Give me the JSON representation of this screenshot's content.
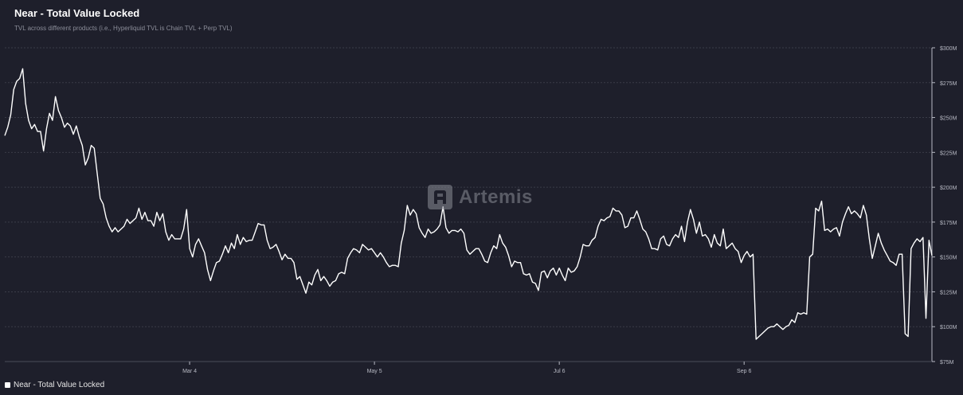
{
  "header": {
    "title": "Near - Total Value Locked",
    "subtitle": "TVL across different products (i.e., Hyperliquid TVL is Chain TVL + Perp TVL)"
  },
  "watermark": {
    "text": "Artemis",
    "icon": "artemis-logo-icon"
  },
  "legend": {
    "label": "Near - Total Value Locked",
    "color": "#ffffff"
  },
  "colors": {
    "background": "#1e1f2b",
    "line": "#ffffff",
    "grid": "#3a3c48",
    "tick_text": "#b8bac4"
  },
  "chart_data": {
    "type": "line",
    "title": "Near - Total Value Locked",
    "subtitle": "TVL across different products (i.e., Hyperliquid TVL is Chain TVL + Perp TVL)",
    "xlabel": "",
    "ylabel": "",
    "ylim": [
      75,
      300
    ],
    "y_unit": "M USD",
    "y_ticks": [
      75,
      100,
      125,
      150,
      175,
      200,
      225,
      250,
      275,
      300
    ],
    "y_tick_labels": [
      "$75M",
      "$100M",
      "$125M",
      "$150M",
      "$175M",
      "$200M",
      "$225M",
      "$250M",
      "$275M",
      "$300M"
    ],
    "x_ticks": [
      {
        "label": "Mar 4",
        "day": 62
      },
      {
        "label": "May 5",
        "day": 124
      },
      {
        "label": "Jul 6",
        "day": 186
      },
      {
        "label": "Sep 6",
        "day": 248
      }
    ],
    "x_range_days": [
      0,
      311
    ],
    "grid": true,
    "legend_position": "bottom-left",
    "series": [
      {
        "name": "Near - Total Value Locked",
        "color": "#ffffff",
        "points": [
          [
            0,
            237
          ],
          [
            1,
            243
          ],
          [
            2,
            252
          ],
          [
            3,
            270
          ],
          [
            4,
            276
          ],
          [
            5,
            278
          ],
          [
            6,
            285
          ],
          [
            7,
            260
          ],
          [
            8,
            248
          ],
          [
            9,
            242
          ],
          [
            10,
            245
          ],
          [
            11,
            240
          ],
          [
            12,
            240
          ],
          [
            13,
            226
          ],
          [
            14,
            242
          ],
          [
            15,
            253
          ],
          [
            16,
            248
          ],
          [
            17,
            265
          ],
          [
            18,
            255
          ],
          [
            19,
            250
          ],
          [
            20,
            243
          ],
          [
            21,
            246
          ],
          [
            22,
            244
          ],
          [
            23,
            238
          ],
          [
            24,
            244
          ],
          [
            25,
            236
          ],
          [
            26,
            230
          ],
          [
            27,
            216
          ],
          [
            28,
            221
          ],
          [
            29,
            230
          ],
          [
            30,
            228
          ],
          [
            31,
            210
          ],
          [
            32,
            192
          ],
          [
            33,
            188
          ],
          [
            34,
            178
          ],
          [
            35,
            172
          ],
          [
            36,
            168
          ],
          [
            37,
            171
          ],
          [
            38,
            168
          ],
          [
            39,
            170
          ],
          [
            40,
            172
          ],
          [
            41,
            177
          ],
          [
            42,
            174
          ],
          [
            43,
            176
          ],
          [
            44,
            178
          ],
          [
            45,
            185
          ],
          [
            46,
            177
          ],
          [
            47,
            182
          ],
          [
            48,
            176
          ],
          [
            49,
            176
          ],
          [
            50,
            172
          ],
          [
            51,
            182
          ],
          [
            52,
            176
          ],
          [
            53,
            181
          ],
          [
            54,
            168
          ],
          [
            55,
            162
          ],
          [
            56,
            166
          ],
          [
            57,
            163
          ],
          [
            58,
            163
          ],
          [
            59,
            163
          ],
          [
            60,
            170
          ],
          [
            61,
            184
          ],
          [
            62,
            156
          ],
          [
            63,
            150
          ],
          [
            64,
            159
          ],
          [
            65,
            163
          ],
          [
            66,
            158
          ],
          [
            67,
            153
          ],
          [
            68,
            141
          ],
          [
            69,
            133
          ],
          [
            70,
            140
          ],
          [
            71,
            146
          ],
          [
            72,
            147
          ],
          [
            73,
            152
          ],
          [
            74,
            158
          ],
          [
            75,
            153
          ],
          [
            76,
            160
          ],
          [
            77,
            156
          ],
          [
            78,
            166
          ],
          [
            79,
            159
          ],
          [
            80,
            164
          ],
          [
            81,
            161
          ],
          [
            82,
            162
          ],
          [
            83,
            162
          ],
          [
            84,
            168
          ],
          [
            85,
            174
          ],
          [
            86,
            173
          ],
          [
            87,
            173
          ],
          [
            88,
            162
          ],
          [
            89,
            156
          ],
          [
            90,
            157
          ],
          [
            91,
            159
          ],
          [
            92,
            154
          ],
          [
            93,
            148
          ],
          [
            94,
            152
          ],
          [
            95,
            149
          ],
          [
            96,
            149
          ],
          [
            97,
            146
          ],
          [
            98,
            134
          ],
          [
            99,
            136
          ],
          [
            100,
            130
          ],
          [
            101,
            124
          ],
          [
            102,
            132
          ],
          [
            103,
            130
          ],
          [
            104,
            137
          ],
          [
            105,
            141
          ],
          [
            106,
            133
          ],
          [
            107,
            136
          ],
          [
            108,
            133
          ],
          [
            109,
            129
          ],
          [
            110,
            132
          ],
          [
            111,
            133
          ],
          [
            112,
            138
          ],
          [
            113,
            139
          ],
          [
            114,
            138
          ],
          [
            115,
            149
          ],
          [
            116,
            153
          ],
          [
            117,
            156
          ],
          [
            118,
            155
          ],
          [
            119,
            153
          ],
          [
            120,
            159
          ],
          [
            121,
            157
          ],
          [
            122,
            155
          ],
          [
            123,
            156
          ],
          [
            124,
            153
          ],
          [
            125,
            150
          ],
          [
            126,
            153
          ],
          [
            127,
            150
          ],
          [
            128,
            146
          ],
          [
            129,
            143
          ],
          [
            130,
            144
          ],
          [
            131,
            144
          ],
          [
            132,
            143
          ],
          [
            133,
            160
          ],
          [
            134,
            169
          ],
          [
            135,
            187
          ],
          [
            136,
            180
          ],
          [
            137,
            184
          ],
          [
            138,
            181
          ],
          [
            139,
            171
          ],
          [
            140,
            167
          ],
          [
            141,
            164
          ],
          [
            142,
            170
          ],
          [
            143,
            167
          ],
          [
            144,
            168
          ],
          [
            145,
            170
          ],
          [
            146,
            173
          ],
          [
            147,
            186
          ],
          [
            148,
            171
          ],
          [
            149,
            167
          ],
          [
            150,
            169
          ],
          [
            151,
            169
          ],
          [
            152,
            168
          ],
          [
            153,
            170
          ],
          [
            154,
            167
          ],
          [
            155,
            155
          ],
          [
            156,
            152
          ],
          [
            157,
            154
          ],
          [
            158,
            156
          ],
          [
            159,
            156
          ],
          [
            160,
            152
          ],
          [
            161,
            147
          ],
          [
            162,
            146
          ],
          [
            163,
            153
          ],
          [
            164,
            158
          ],
          [
            165,
            156
          ],
          [
            166,
            166
          ],
          [
            167,
            160
          ],
          [
            168,
            157
          ],
          [
            169,
            151
          ],
          [
            170,
            143
          ],
          [
            171,
            147
          ],
          [
            172,
            146
          ],
          [
            173,
            146
          ],
          [
            174,
            138
          ],
          [
            175,
            137
          ],
          [
            176,
            138
          ],
          [
            177,
            132
          ],
          [
            178,
            131
          ],
          [
            179,
            126
          ],
          [
            180,
            139
          ],
          [
            181,
            140
          ],
          [
            182,
            135
          ],
          [
            183,
            140
          ],
          [
            184,
            142
          ],
          [
            185,
            137
          ],
          [
            186,
            142
          ],
          [
            187,
            137
          ],
          [
            188,
            133
          ],
          [
            189,
            142
          ],
          [
            190,
            139
          ],
          [
            191,
            140
          ],
          [
            192,
            143
          ],
          [
            193,
            150
          ],
          [
            194,
            159
          ],
          [
            195,
            158
          ],
          [
            196,
            158
          ],
          [
            197,
            162
          ],
          [
            198,
            164
          ],
          [
            199,
            172
          ],
          [
            200,
            177
          ],
          [
            201,
            176
          ],
          [
            202,
            178
          ],
          [
            203,
            179
          ],
          [
            204,
            185
          ],
          [
            205,
            183
          ],
          [
            206,
            183
          ],
          [
            207,
            180
          ],
          [
            208,
            171
          ],
          [
            209,
            172
          ],
          [
            210,
            178
          ],
          [
            211,
            178
          ],
          [
            212,
            183
          ],
          [
            213,
            177
          ],
          [
            214,
            170
          ],
          [
            215,
            168
          ],
          [
            216,
            163
          ],
          [
            217,
            156
          ],
          [
            218,
            156
          ],
          [
            219,
            155
          ],
          [
            220,
            163
          ],
          [
            221,
            165
          ],
          [
            222,
            159
          ],
          [
            223,
            158
          ],
          [
            224,
            163
          ],
          [
            225,
            166
          ],
          [
            226,
            164
          ],
          [
            227,
            172
          ],
          [
            228,
            161
          ],
          [
            229,
            175
          ],
          [
            230,
            184
          ],
          [
            231,
            177
          ],
          [
            232,
            167
          ],
          [
            233,
            175
          ],
          [
            234,
            165
          ],
          [
            235,
            166
          ],
          [
            236,
            163
          ],
          [
            237,
            157
          ],
          [
            238,
            166
          ],
          [
            239,
            160
          ],
          [
            240,
            158
          ],
          [
            241,
            170
          ],
          [
            242,
            156
          ],
          [
            243,
            158
          ],
          [
            244,
            160
          ],
          [
            245,
            156
          ],
          [
            246,
            154
          ],
          [
            247,
            146
          ],
          [
            248,
            151
          ],
          [
            249,
            154
          ],
          [
            250,
            150
          ],
          [
            251,
            152
          ],
          [
            252,
            91
          ],
          [
            253,
            93
          ],
          [
            254,
            95
          ],
          [
            255,
            97
          ],
          [
            256,
            99
          ],
          [
            257,
            100
          ],
          [
            258,
            100
          ],
          [
            259,
            102
          ],
          [
            260,
            100
          ],
          [
            261,
            98
          ],
          [
            262,
            100
          ],
          [
            263,
            101
          ],
          [
            264,
            105
          ],
          [
            265,
            103
          ],
          [
            266,
            110
          ],
          [
            267,
            109
          ],
          [
            268,
            110
          ],
          [
            269,
            109
          ],
          [
            270,
            150
          ],
          [
            271,
            152
          ],
          [
            272,
            185
          ],
          [
            273,
            183
          ],
          [
            274,
            190
          ],
          [
            275,
            169
          ],
          [
            276,
            170
          ],
          [
            277,
            168
          ],
          [
            278,
            170
          ],
          [
            279,
            171
          ],
          [
            280,
            165
          ],
          [
            281,
            175
          ],
          [
            282,
            181
          ],
          [
            283,
            186
          ],
          [
            284,
            181
          ],
          [
            285,
            183
          ],
          [
            286,
            181
          ],
          [
            287,
            178
          ],
          [
            288,
            187
          ],
          [
            289,
            180
          ],
          [
            290,
            163
          ],
          [
            291,
            149
          ],
          [
            292,
            158
          ],
          [
            293,
            167
          ],
          [
            294,
            160
          ],
          [
            295,
            155
          ],
          [
            296,
            151
          ],
          [
            297,
            147
          ],
          [
            298,
            146
          ],
          [
            299,
            144
          ],
          [
            300,
            152
          ],
          [
            301,
            152
          ],
          [
            302,
            95
          ],
          [
            303,
            93
          ],
          [
            304,
            156
          ],
          [
            305,
            160
          ],
          [
            306,
            163
          ],
          [
            307,
            161
          ],
          [
            308,
            164
          ],
          [
            309,
            106
          ],
          [
            310,
            162
          ],
          [
            311,
            151
          ]
        ]
      }
    ]
  }
}
